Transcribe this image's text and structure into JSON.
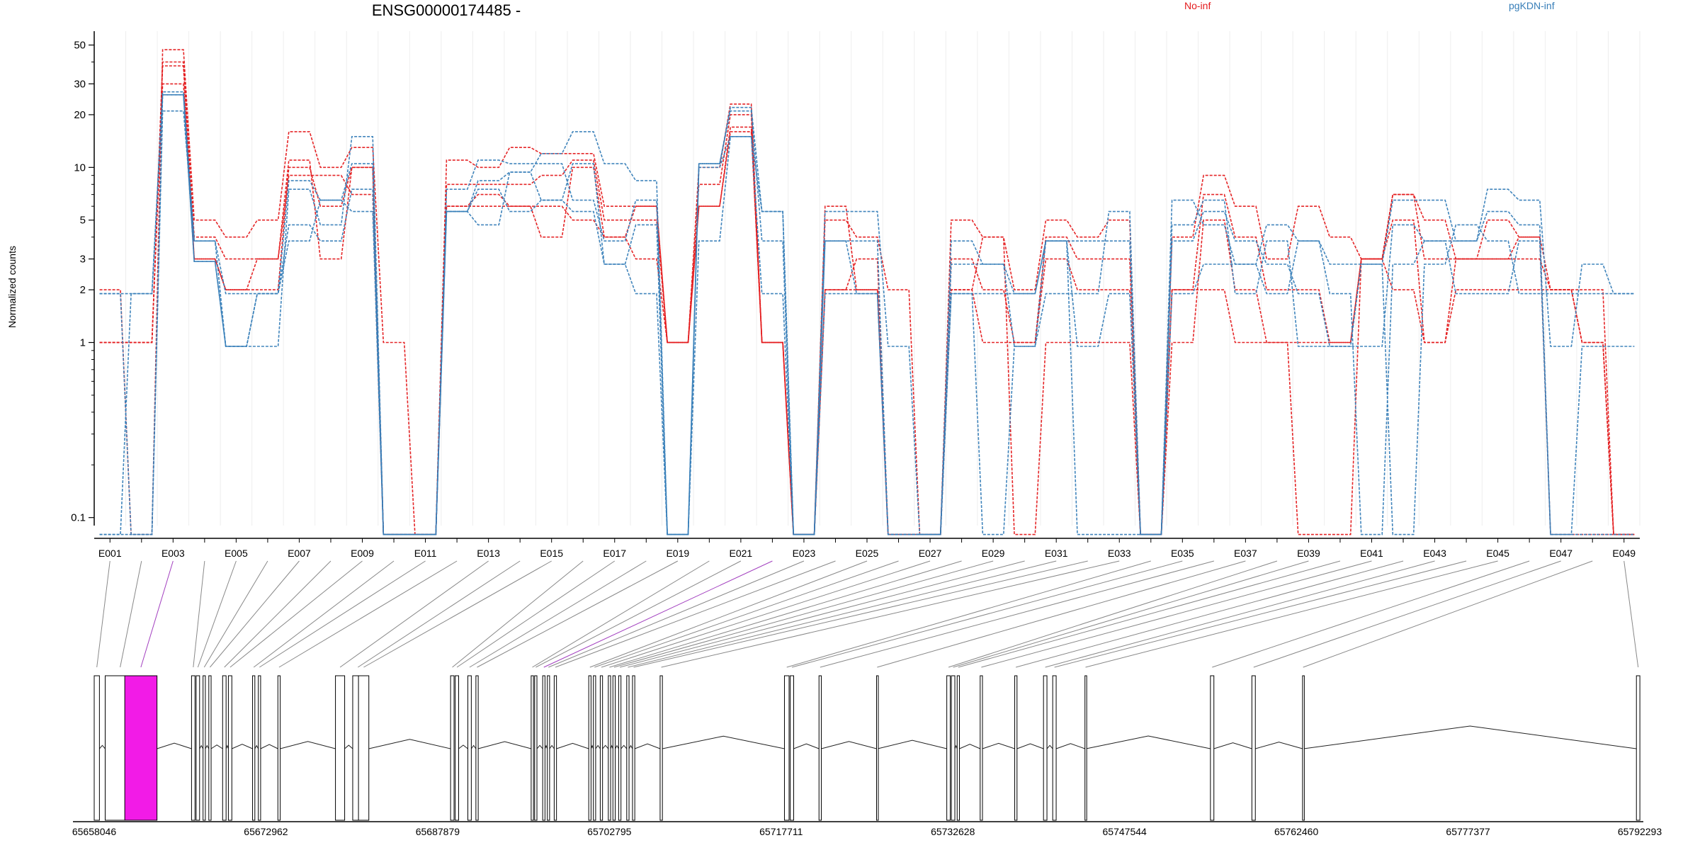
{
  "chart_data": {
    "type": "line",
    "title": "ENSG00000174485 -",
    "ylabel": "Normalized counts",
    "xlabel": "",
    "y_scale": "log",
    "yticks": [
      0.1,
      1,
      2,
      3,
      5,
      10,
      20,
      30,
      50
    ],
    "ylim": [
      0.09,
      60
    ],
    "legend": {
      "placement": "top",
      "entries": [
        {
          "name": "No-inf",
          "color": "#e41a1c"
        },
        {
          "name": "pgKDN-inf",
          "color": "#377eb8"
        }
      ]
    },
    "exon_labels_shown": [
      "E001",
      "E003",
      "E005",
      "E007",
      "E009",
      "E011",
      "E013",
      "E015",
      "E017",
      "E019",
      "E021",
      "E023",
      "E025",
      "E027",
      "E029",
      "E031",
      "E033",
      "E035",
      "E037",
      "E039",
      "E041",
      "E043",
      "E045",
      "E047",
      "E049"
    ],
    "categories": [
      "E001",
      "E002",
      "E003",
      "E004",
      "E005",
      "E006",
      "E007",
      "E008",
      "E009",
      "E010",
      "E011",
      "E012",
      "E013",
      "E014",
      "E015",
      "E016",
      "E017",
      "E018",
      "E019",
      "E020",
      "E021",
      "E022",
      "E023",
      "E024",
      "E025",
      "E026",
      "E027",
      "E028",
      "E029",
      "E030",
      "E031",
      "E032",
      "E033",
      "E034",
      "E035",
      "E036",
      "E037",
      "E038",
      "E039",
      "E040",
      "E041",
      "E042",
      "E043",
      "E044",
      "E045",
      "E046",
      "E047",
      "E048",
      "E049"
    ],
    "series": [
      {
        "group": "No-inf",
        "color": "#e41a1c",
        "values": [
          2,
          0.08,
          47,
          5,
          4,
          5,
          16,
          10,
          13,
          1,
          0.08,
          11,
          10,
          13,
          12,
          12,
          6,
          6,
          1,
          10,
          23,
          1,
          0.08,
          6,
          2,
          0.08,
          0.08,
          5,
          4,
          2,
          5,
          4,
          5,
          0.08,
          4,
          9,
          6,
          3,
          6,
          4,
          3,
          7,
          5,
          3,
          5,
          4,
          2,
          2,
          0.08
        ]
      },
      {
        "group": "No-inf",
        "color": "#e41a1c",
        "values": [
          1,
          1,
          40,
          4,
          3,
          3,
          11,
          3,
          10,
          0.08,
          0.08,
          8,
          8,
          8,
          9,
          11,
          5,
          5,
          1,
          8,
          20,
          1,
          0.08,
          5,
          4,
          2,
          0.08,
          3,
          2,
          1,
          4,
          3,
          3,
          0.08,
          2,
          7,
          4,
          2,
          2,
          1,
          3,
          7,
          3,
          3,
          3,
          3,
          2,
          1,
          0.08
        ]
      },
      {
        "group": "No-inf",
        "color": "#e41a1c",
        "values": [
          1,
          1,
          38,
          3,
          2,
          3,
          9,
          9,
          7,
          0.08,
          0.08,
          6,
          7,
          6,
          4,
          10,
          4,
          3,
          1,
          6,
          17,
          1,
          0.08,
          2,
          3,
          0.08,
          0.08,
          2,
          1,
          1,
          3,
          2,
          2,
          0.08,
          1,
          5,
          2,
          1,
          1,
          1,
          3,
          5,
          1,
          2,
          2,
          2,
          2,
          1,
          0.08
        ]
      },
      {
        "group": "No-inf",
        "color": "#e41a1c",
        "values": [
          1,
          1,
          30,
          3,
          2,
          2,
          10,
          6,
          10,
          0.08,
          0.08,
          6,
          6,
          6,
          6,
          5,
          4,
          6,
          1,
          6,
          16,
          1,
          0.08,
          2,
          2,
          0.08,
          0.08,
          2,
          4,
          0.08,
          1,
          1,
          1,
          0.08,
          2,
          2,
          1,
          1,
          0.08,
          0.08,
          3,
          2,
          1,
          3,
          3,
          4,
          0.08,
          0.08,
          0.08
        ]
      },
      {
        "group": "pgKDN-inf",
        "color": "#377eb8",
        "values": [
          0.08,
          1.9,
          26,
          2.9,
          0.95,
          0.95,
          7.5,
          4.7,
          15,
          0.08,
          0.08,
          5.6,
          4.7,
          9.4,
          12,
          16,
          10.5,
          8.4,
          0.08,
          10.5,
          22,
          5.6,
          0.08,
          5.6,
          5.6,
          0.95,
          0.08,
          3.8,
          2.8,
          0.95,
          1.9,
          1.9,
          5.6,
          0.08,
          6.5,
          4.7,
          2.8,
          4.7,
          3.8,
          2.8,
          2.8,
          6.5,
          6.5,
          3.8,
          7.5,
          6.5,
          0.95,
          2.8,
          1.9
        ]
      },
      {
        "group": "pgKDN-inf",
        "color": "#377eb8",
        "values": [
          1.9,
          1.9,
          27,
          3.8,
          1.9,
          1.9,
          8.4,
          6.5,
          10.5,
          0.08,
          0.08,
          7.5,
          11,
          10.5,
          10.5,
          6.5,
          3.8,
          6.5,
          0.08,
          10.5,
          21,
          3.8,
          0.08,
          3.8,
          3.8,
          0.08,
          0.08,
          2.8,
          2.8,
          1.9,
          3.8,
          0.95,
          1.9,
          0.08,
          3.8,
          5.6,
          3.8,
          2.8,
          1.9,
          0.95,
          0.95,
          4.7,
          3.8,
          3.8,
          5.6,
          4.7,
          0.08,
          0.95,
          0.95
        ]
      },
      {
        "group": "pgKDN-inf",
        "color": "#377eb8",
        "values": [
          0.08,
          0.08,
          21,
          3.8,
          0.95,
          1.9,
          4.7,
          3.8,
          7.5,
          0.08,
          0.08,
          5.6,
          7.5,
          5.6,
          6.5,
          10.5,
          2.8,
          4.7,
          0.08,
          3.8,
          15,
          1.9,
          0.08,
          1.9,
          1.9,
          0.08,
          0.08,
          1.9,
          0.08,
          0.95,
          3.8,
          0.08,
          0.08,
          0.08,
          1.9,
          2.8,
          2.8,
          1.9,
          3.8,
          1.9,
          0.08,
          2.8,
          3.8,
          1.9,
          1.9,
          3.8,
          0.08,
          0.08,
          0.08
        ]
      },
      {
        "group": "pgKDN-inf",
        "color": "#377eb8",
        "values": [
          1.9,
          0.08,
          26,
          2.9,
          0.95,
          1.9,
          3.8,
          6.5,
          5.6,
          0.08,
          0.08,
          5.6,
          8.4,
          9.4,
          6.5,
          5.6,
          2.8,
          1.9,
          0.08,
          10,
          15,
          5.6,
          0.08,
          3.8,
          1.9,
          0.08,
          0.08,
          1.9,
          1.9,
          1.9,
          3.8,
          3.8,
          3.8,
          0.08,
          4.7,
          6.5,
          1.9,
          3.8,
          0.95,
          0.95,
          2.8,
          0.08,
          2.8,
          4.7,
          3.8,
          1.9,
          1.9,
          1.9,
          1.9
        ]
      }
    ],
    "gene_track": {
      "coordinate_ticks": [
        "65658046",
        "65672962",
        "65687879",
        "65702795",
        "65717711",
        "65732628",
        "65747544",
        "65762460",
        "65777377",
        "65792293"
      ],
      "coordinate_range": [
        65658046,
        65792293
      ],
      "highlighted_exon": "E003",
      "highlight_color": "#f21be7",
      "exon_starts": [
        65658046,
        65659000,
        65660700,
        65666500,
        65666900,
        65667500,
        65668000,
        65669200,
        65669700,
        65671800,
        65672300,
        65674000,
        65679000,
        65680500,
        65681000,
        65689000,
        65689400,
        65690500,
        65691200,
        65696000,
        65696300,
        65697000,
        65697400,
        65698000,
        65701000,
        65701400,
        65702000,
        65702700,
        65703100,
        65703600,
        65704300,
        65704800,
        65707200,
        65718000,
        65718500,
        65721000,
        65726000,
        65732100,
        65732500,
        65733000,
        65735000,
        65738000,
        65740500,
        65741300,
        65744100,
        65755000,
        65758600,
        65763000,
        65792000
      ],
      "exon_ends": [
        65658500,
        65661600,
        65663500,
        65666800,
        65667200,
        65667700,
        65668200,
        65669500,
        65670000,
        65672000,
        65672500,
        65674200,
        65679800,
        65681400,
        65681900,
        65689300,
        65689700,
        65690800,
        65691400,
        65696200,
        65696500,
        65697200,
        65697600,
        65698200,
        65701200,
        65701600,
        65702200,
        65702900,
        65703300,
        65703800,
        65704500,
        65705000,
        65707400,
        65718400,
        65718800,
        65721200,
        65726100,
        65732400,
        65732800,
        65733200,
        65735200,
        65738200,
        65740800,
        65741600,
        65744200,
        65755300,
        65758900,
        65763100,
        65792300
      ]
    }
  }
}
